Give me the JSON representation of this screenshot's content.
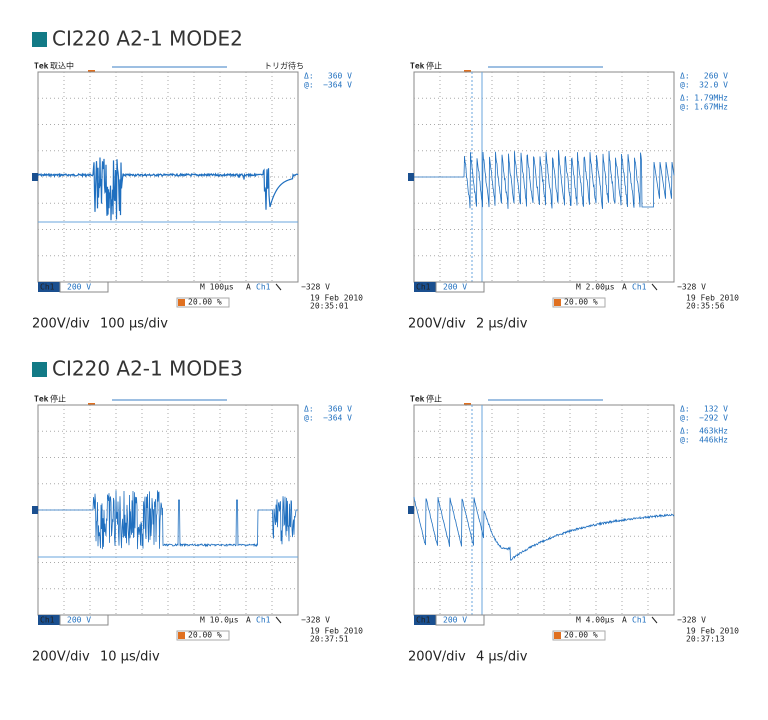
{
  "sections": [
    {
      "title": "CI220 A2-1 MODE2",
      "scopes": [
        {
          "tek": "Tek",
          "status": "取込中",
          "trigger_state": "トリガ待ち",
          "readouts": [
            {
              "label": "Δ:",
              "value": "360 V"
            },
            {
              "label": "@:",
              "value": "−364 V"
            }
          ],
          "channel": "Ch1",
          "volts": "200 V",
          "timebase": "M 100µs",
          "trigger_mode": "A",
          "trigger_channel": "Ch1",
          "trigger_level": "−328 V",
          "position": "20.00 %",
          "date": "19 Feb 2010",
          "time": "20:35:01",
          "caption_vdiv": "200V/div",
          "caption_tdiv": "100 µs/div"
        },
        {
          "tek": "Tek",
          "status": "停止",
          "readouts": [
            {
              "label": "Δ:",
              "value": "260 V"
            },
            {
              "label": "@:",
              "value": "32.0 V"
            },
            {
              "label": "Δ:",
              "value": "1.79MHz"
            },
            {
              "label": "@:",
              "value": "1.67MHz"
            }
          ],
          "channel": "Ch1",
          "volts": "200 V",
          "timebase": "M 2.00µs",
          "trigger_mode": "A",
          "trigger_channel": "Ch1",
          "trigger_level": "−328 V",
          "position": "20.00 %",
          "date": "19 Feb 2010",
          "time": "20:35:56",
          "caption_vdiv": "200V/div",
          "caption_tdiv": "2 µs/div"
        }
      ]
    },
    {
      "title": "CI220 A2-1 MODE3",
      "scopes": [
        {
          "tek": "Tek",
          "status": "停止",
          "readouts": [
            {
              "label": "Δ:",
              "value": "360 V"
            },
            {
              "label": "@:",
              "value": "−364 V"
            }
          ],
          "channel": "Ch1",
          "volts": "200 V",
          "timebase": "M 10.0µs",
          "trigger_mode": "A",
          "trigger_channel": "Ch1",
          "trigger_level": "−328 V",
          "position": "20.00 %",
          "date": "19 Feb 2010",
          "time": "20:37:51",
          "caption_vdiv": "200V/div",
          "caption_tdiv": "10 µs/div"
        },
        {
          "tek": "Tek",
          "status": "停止",
          "readouts": [
            {
              "label": "Δ:",
              "value": "132 V"
            },
            {
              "label": "@:",
              "value": "−292 V"
            },
            {
              "label": "Δ:",
              "value": "463kHz"
            },
            {
              "label": "@:",
              "value": "446kHz"
            }
          ],
          "channel": "Ch1",
          "volts": "200 V",
          "timebase": "M 4.00µs",
          "trigger_mode": "A",
          "trigger_channel": "Ch1",
          "trigger_level": "−328 V",
          "position": "20.00 %",
          "date": "19 Feb 2010",
          "time": "20:37:13",
          "caption_vdiv": "200V/div",
          "caption_tdiv": "4 µs/div"
        }
      ]
    }
  ]
}
